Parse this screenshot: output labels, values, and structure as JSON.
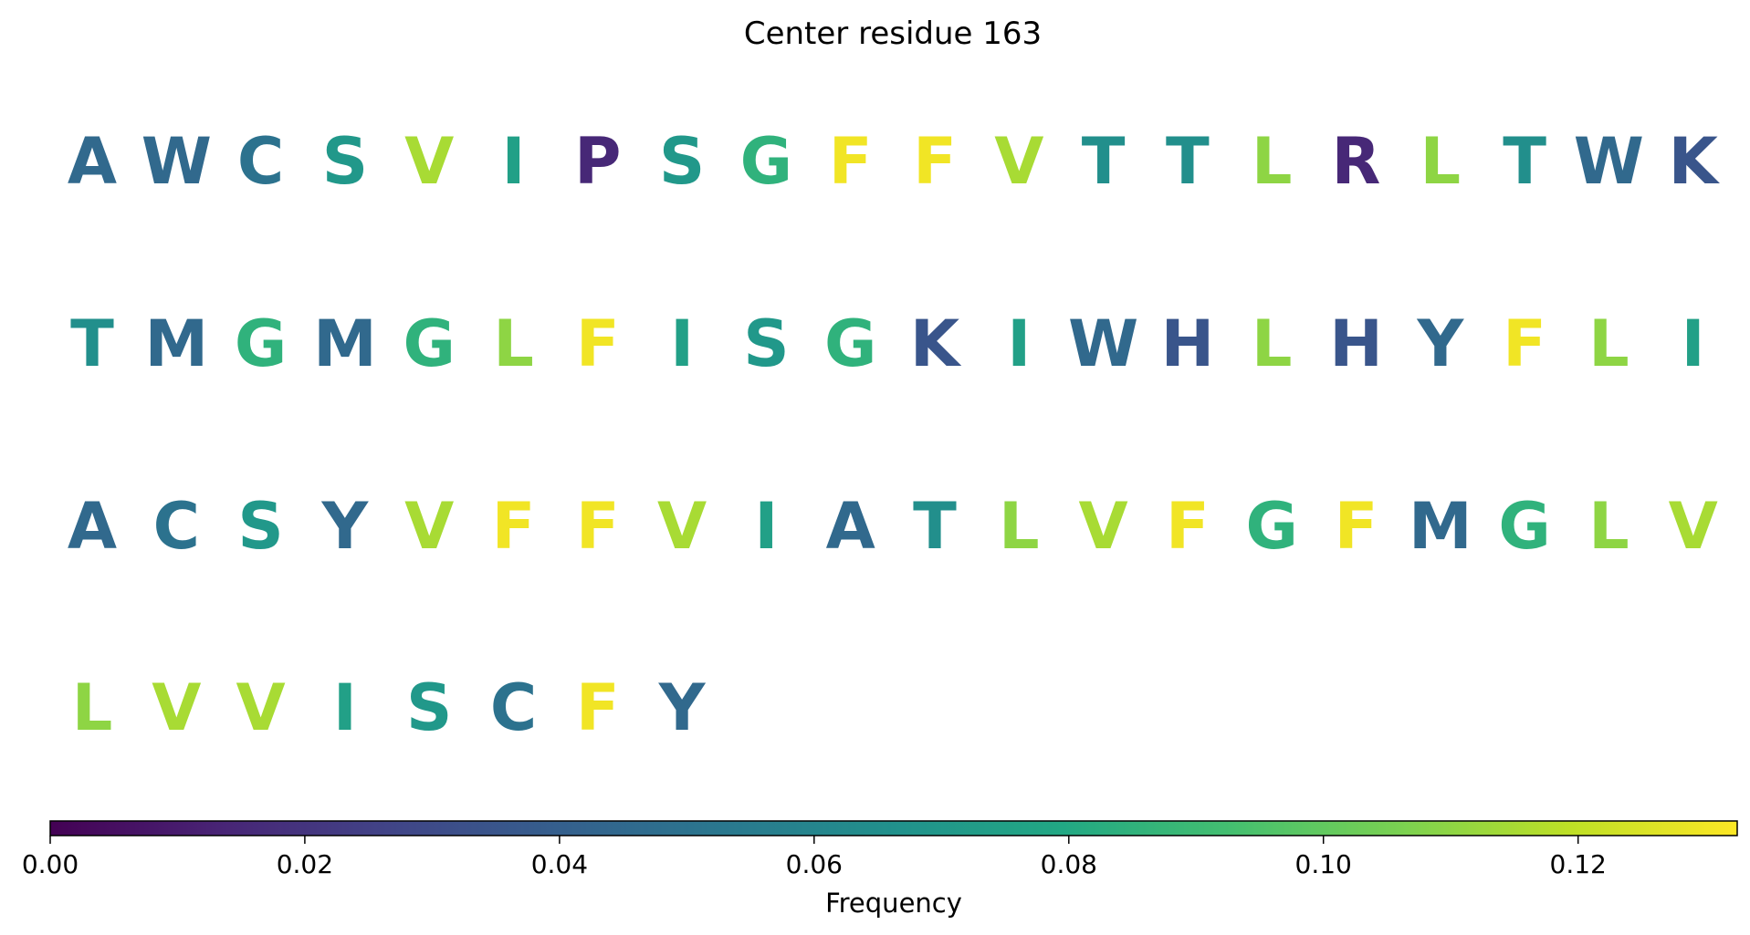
{
  "chart_data": {
    "type": "heatmap",
    "title": "Center residue 163",
    "colorbar": {
      "label": "Frequency",
      "min": 0.0,
      "max": 0.1325,
      "ticks": [
        "0.00",
        "0.02",
        "0.04",
        "0.06",
        "0.08",
        "0.10",
        "0.12"
      ],
      "tick_values": [
        0,
        0.02,
        0.04,
        0.06,
        0.08,
        0.1,
        0.12
      ],
      "colormap": "viridis",
      "orientation": "horizontal",
      "placement": "bottom"
    },
    "rows": [
      [
        {
          "residue": "A",
          "frequency": 0.045
        },
        {
          "residue": "W",
          "frequency": 0.045
        },
        {
          "residue": "C",
          "frequency": 0.05
        },
        {
          "residue": "S",
          "frequency": 0.07
        },
        {
          "residue": "V",
          "frequency": 0.115
        },
        {
          "residue": "I",
          "frequency": 0.075
        },
        {
          "residue": "P",
          "frequency": 0.015
        },
        {
          "residue": "S",
          "frequency": 0.07
        },
        {
          "residue": "G",
          "frequency": 0.085
        },
        {
          "residue": "F",
          "frequency": 0.13
        },
        {
          "residue": "F",
          "frequency": 0.13
        },
        {
          "residue": "V",
          "frequency": 0.115
        },
        {
          "residue": "T",
          "frequency": 0.065
        },
        {
          "residue": "T",
          "frequency": 0.065
        },
        {
          "residue": "L",
          "frequency": 0.11
        },
        {
          "residue": "R",
          "frequency": 0.015
        },
        {
          "residue": "L",
          "frequency": 0.11
        },
        {
          "residue": "T",
          "frequency": 0.065
        },
        {
          "residue": "W",
          "frequency": 0.045
        },
        {
          "residue": "K",
          "frequency": 0.035
        }
      ],
      [
        {
          "residue": "T",
          "frequency": 0.065
        },
        {
          "residue": "M",
          "frequency": 0.045
        },
        {
          "residue": "G",
          "frequency": 0.085
        },
        {
          "residue": "M",
          "frequency": 0.045
        },
        {
          "residue": "G",
          "frequency": 0.085
        },
        {
          "residue": "L",
          "frequency": 0.11
        },
        {
          "residue": "F",
          "frequency": 0.13
        },
        {
          "residue": "I",
          "frequency": 0.075
        },
        {
          "residue": "S",
          "frequency": 0.07
        },
        {
          "residue": "G",
          "frequency": 0.085
        },
        {
          "residue": "K",
          "frequency": 0.035
        },
        {
          "residue": "I",
          "frequency": 0.075
        },
        {
          "residue": "W",
          "frequency": 0.045
        },
        {
          "residue": "H",
          "frequency": 0.035
        },
        {
          "residue": "L",
          "frequency": 0.11
        },
        {
          "residue": "H",
          "frequency": 0.035
        },
        {
          "residue": "Y",
          "frequency": 0.045
        },
        {
          "residue": "F",
          "frequency": 0.13
        },
        {
          "residue": "L",
          "frequency": 0.11
        },
        {
          "residue": "I",
          "frequency": 0.075
        }
      ],
      [
        {
          "residue": "A",
          "frequency": 0.045
        },
        {
          "residue": "C",
          "frequency": 0.05
        },
        {
          "residue": "S",
          "frequency": 0.07
        },
        {
          "residue": "Y",
          "frequency": 0.045
        },
        {
          "residue": "V",
          "frequency": 0.115
        },
        {
          "residue": "F",
          "frequency": 0.13
        },
        {
          "residue": "F",
          "frequency": 0.13
        },
        {
          "residue": "V",
          "frequency": 0.115
        },
        {
          "residue": "I",
          "frequency": 0.075
        },
        {
          "residue": "A",
          "frequency": 0.045
        },
        {
          "residue": "T",
          "frequency": 0.065
        },
        {
          "residue": "L",
          "frequency": 0.11
        },
        {
          "residue": "V",
          "frequency": 0.115
        },
        {
          "residue": "F",
          "frequency": 0.13
        },
        {
          "residue": "G",
          "frequency": 0.085
        },
        {
          "residue": "F",
          "frequency": 0.13
        },
        {
          "residue": "M",
          "frequency": 0.045
        },
        {
          "residue": "G",
          "frequency": 0.085
        },
        {
          "residue": "L",
          "frequency": 0.11
        },
        {
          "residue": "V",
          "frequency": 0.115
        }
      ],
      [
        {
          "residue": "L",
          "frequency": 0.11
        },
        {
          "residue": "V",
          "frequency": 0.115
        },
        {
          "residue": "V",
          "frequency": 0.115
        },
        {
          "residue": "I",
          "frequency": 0.075
        },
        {
          "residue": "S",
          "frequency": 0.07
        },
        {
          "residue": "C",
          "frequency": 0.05
        },
        {
          "residue": "F",
          "frequency": 0.13
        },
        {
          "residue": "Y",
          "frequency": 0.045
        }
      ]
    ]
  }
}
